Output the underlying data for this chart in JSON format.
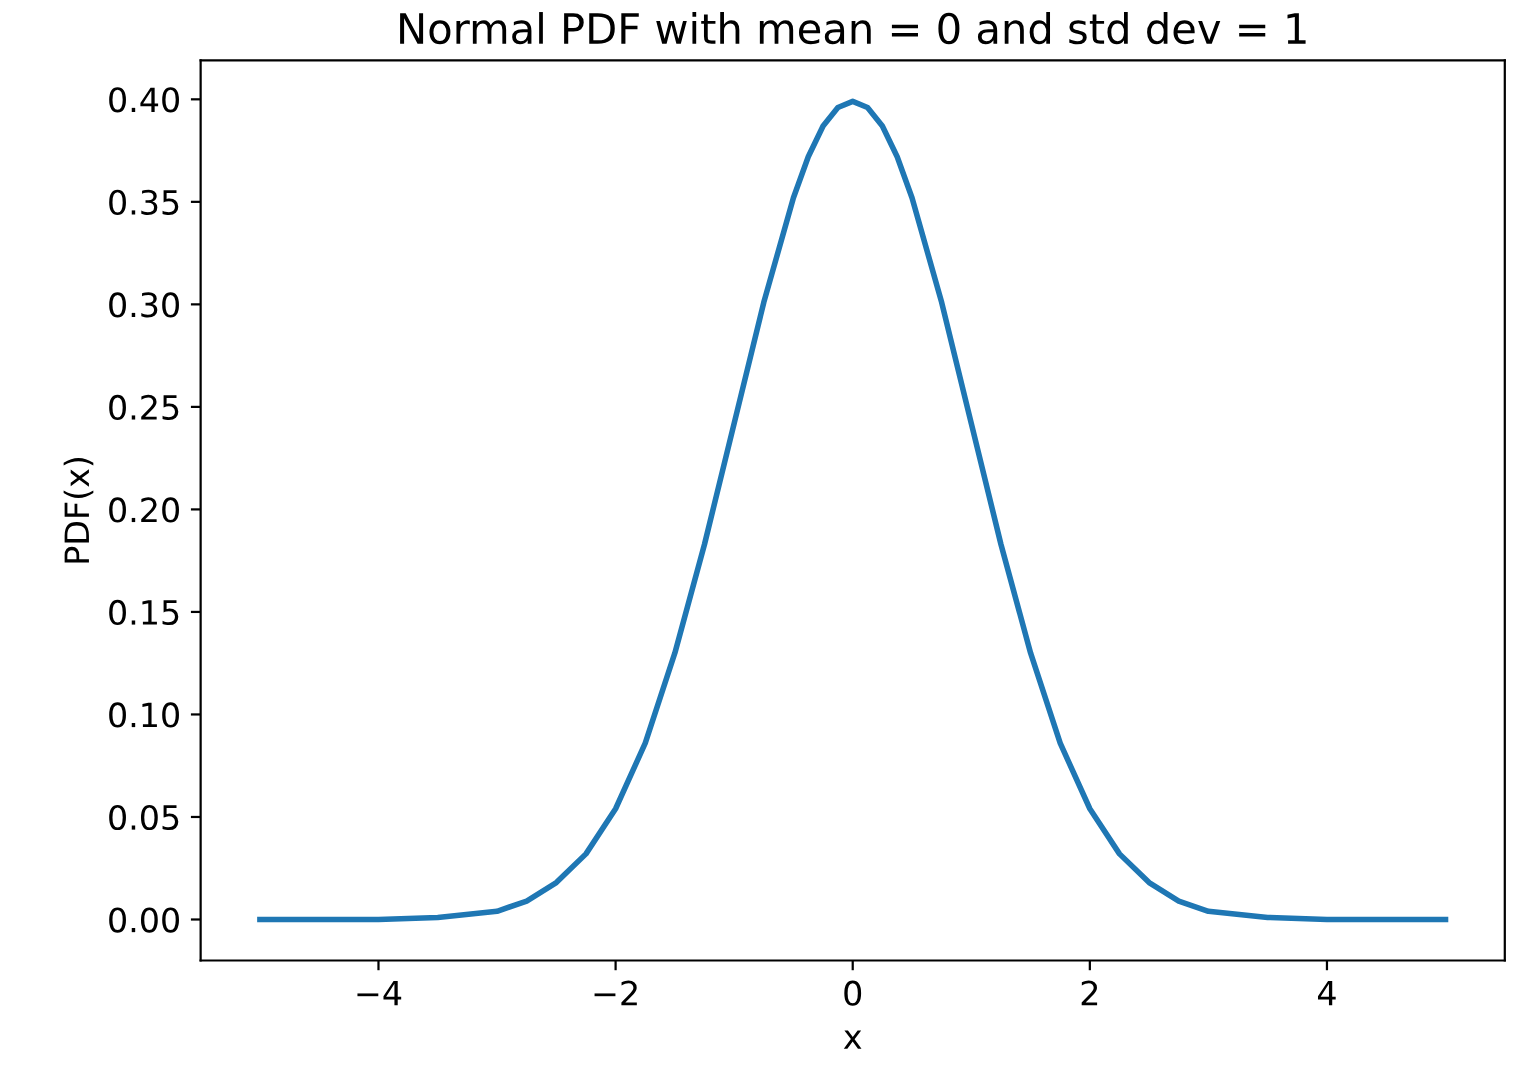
{
  "chart_data": {
    "type": "line",
    "title": "Normal PDF with mean = 0 and std dev = 1",
    "xlabel": "x",
    "ylabel": "PDF(x)",
    "series": [
      {
        "color": "#1f77b4",
        "x": [
          -5,
          -4.5,
          -4,
          -3.5,
          -3,
          -2.75,
          -2.5,
          -2.25,
          -2,
          -1.75,
          -1.5,
          -1.25,
          -1,
          -0.75,
          -0.5,
          -0.375,
          -0.25,
          -0.125,
          0,
          0.125,
          0.25,
          0.375,
          0.5,
          0.75,
          1,
          1.25,
          1.5,
          1.75,
          2,
          2.25,
          2.5,
          2.75,
          3,
          3.5,
          4,
          4.5,
          5
        ],
        "values": [
          0.0,
          0.0,
          0.0,
          0.001,
          0.004,
          0.009,
          0.018,
          0.032,
          0.054,
          0.086,
          0.13,
          0.183,
          0.242,
          0.301,
          0.352,
          0.372,
          0.387,
          0.396,
          0.399,
          0.396,
          0.387,
          0.372,
          0.352,
          0.301,
          0.242,
          0.183,
          0.13,
          0.086,
          0.054,
          0.032,
          0.018,
          0.009,
          0.004,
          0.001,
          0.0,
          0.0,
          0.0
        ]
      }
    ],
    "xlim": [
      -5.5,
      5.5
    ],
    "ylim": [
      -0.02,
      0.419
    ],
    "xticks": [
      {
        "value": -4,
        "label": "−4"
      },
      {
        "value": -2,
        "label": "−2"
      },
      0,
      2,
      4
    ],
    "yticks": [
      {
        "value": 0,
        "label": "0.00"
      },
      {
        "value": 0.05,
        "label": "0.05"
      },
      {
        "value": 0.1,
        "label": "0.10"
      },
      {
        "value": 0.15,
        "label": "0.15"
      },
      {
        "value": 0.2,
        "label": "0.20"
      },
      {
        "value": 0.25,
        "label": "0.25"
      },
      {
        "value": 0.3,
        "label": "0.30"
      },
      {
        "value": 0.35,
        "label": "0.35"
      },
      {
        "value": 0.4,
        "label": "0.40"
      }
    ],
    "grid": false,
    "marker": "none",
    "line_style": "solid"
  }
}
